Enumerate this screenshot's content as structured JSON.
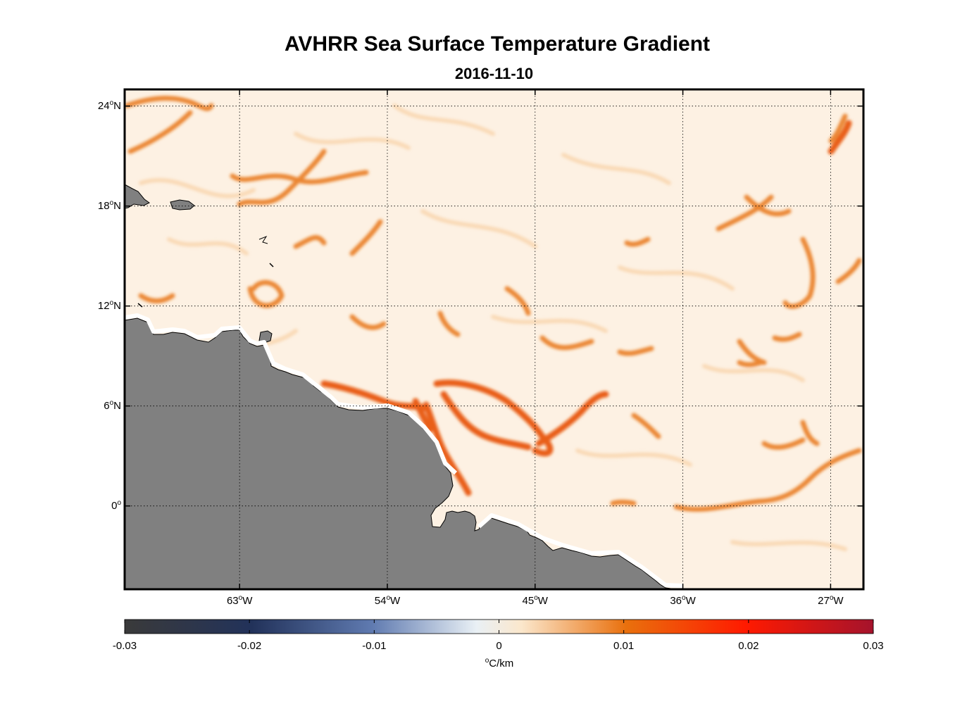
{
  "title": "AVHRR Sea Surface Temperature Gradient",
  "subtitle": "2016-11-10",
  "map": {
    "projection": "equirectangular",
    "lon_range": [
      -70,
      -25
    ],
    "lat_range": [
      -5,
      25
    ],
    "grid": true,
    "grid_style": "dotted",
    "land_color": "#808080",
    "coast_color": "#000000",
    "lat_ticks": [
      {
        "value": 24,
        "label_num": "24",
        "label_sup": "o",
        "label_hem": "N"
      },
      {
        "value": 18,
        "label_num": "18",
        "label_sup": "o",
        "label_hem": "N"
      },
      {
        "value": 12,
        "label_num": "12",
        "label_sup": "o",
        "label_hem": "N"
      },
      {
        "value": 6,
        "label_num": "6",
        "label_sup": "o",
        "label_hem": "N"
      },
      {
        "value": 0,
        "label_num": "0",
        "label_sup": "o",
        "label_hem": ""
      }
    ],
    "lon_ticks": [
      {
        "value": -63,
        "label_num": "63",
        "label_sup": "o",
        "label_hem": "W"
      },
      {
        "value": -54,
        "label_num": "54",
        "label_sup": "o",
        "label_hem": "W"
      },
      {
        "value": -45,
        "label_num": "45",
        "label_sup": "o",
        "label_hem": "W"
      },
      {
        "value": -36,
        "label_num": "36",
        "label_sup": "o",
        "label_hem": "W"
      },
      {
        "value": -27,
        "label_num": "27",
        "label_sup": "o",
        "label_hem": "W"
      }
    ]
  },
  "colorbar": {
    "range": [
      -0.03,
      0.03
    ],
    "tick_labels": [
      "-0.03",
      "-0.02",
      "-0.01",
      "0",
      "0.01",
      "0.02",
      "0.03"
    ],
    "tick_values": [
      -0.03,
      -0.02,
      -0.01,
      0,
      0.01,
      0.02,
      0.03
    ],
    "unit_sup": "o",
    "unit_text": "C/km",
    "colors": [
      "#3a3a3a",
      "#22325a",
      "#5f7ab0",
      "#eef3f2",
      "#fbe7cc",
      "#e9700d",
      "#ff1a00",
      "#a5132c"
    ]
  }
}
